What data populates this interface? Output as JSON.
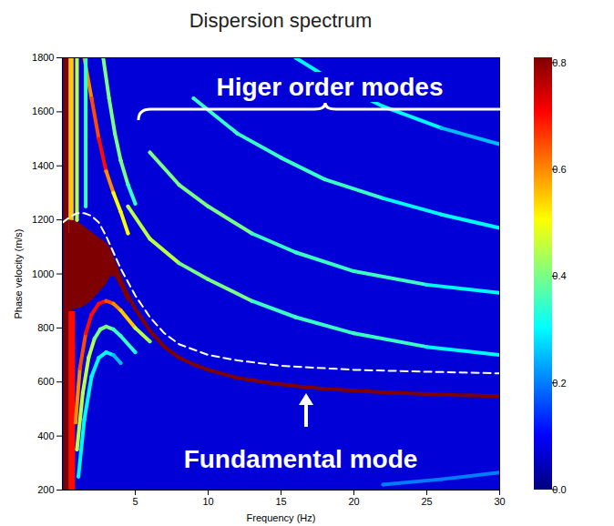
{
  "chart_data": {
    "type": "heatmap",
    "title": "Dispersion spectrum",
    "x_label": "Frequency (Hz)",
    "y_label": "Phase velocity (m/s)",
    "xlim": [
      0,
      30
    ],
    "xticks": [
      5,
      10,
      15,
      20,
      25,
      30
    ],
    "ylim": [
      200,
      1800
    ],
    "yticks": [
      200,
      400,
      600,
      800,
      1000,
      1200,
      1400,
      1600,
      1800
    ],
    "colorbar": {
      "range": [
        0,
        0.81
      ],
      "ticks": [
        {
          "value": 0,
          "label": "0.0"
        },
        0.2,
        0.4,
        0.6,
        0.8
      ]
    },
    "background": 0.07,
    "bands": [
      {
        "x": [
          0.1,
          0.45
        ],
        "y1": [
          200,
          200
        ],
        "y2": [
          1800,
          1800
        ],
        "value": 0.85
      },
      {
        "x": [
          0.45,
          0.8
        ],
        "y1": [
          1150,
          1150
        ],
        "y2": [
          1800,
          1800
        ],
        "value": 0.55
      },
      {
        "x": [
          0.45,
          0.9
        ],
        "y1": [
          200,
          200
        ],
        "y2": [
          860,
          860
        ],
        "value": 0.7
      },
      {
        "x": [
          0.45,
          1,
          1.5,
          2,
          2.5,
          3,
          3.3,
          3.6,
          4,
          4.5
        ],
        "y1": [
          860,
          870,
          880,
          900,
          930,
          960,
          990,
          990,
          950,
          890
        ],
        "y2": [
          1200,
          1195,
          1175,
          1155,
          1135,
          1115,
          1095,
          1055,
          1000,
          935
        ],
        "value": 0.85
      }
    ],
    "ridges": [
      {
        "x": [
          3.5,
          4,
          4.5,
          5,
          6,
          7,
          8,
          9,
          10,
          12,
          14,
          16,
          18,
          20,
          22,
          25,
          28,
          30
        ],
        "y": [
          1010,
          970,
          920,
          870,
          790,
          730,
          690,
          665,
          645,
          615,
          598,
          585,
          575,
          568,
          562,
          555,
          550,
          548
        ],
        "values": [
          0.85,
          0.85,
          0.85,
          0.85,
          0.85,
          0.85,
          0.85,
          0.85,
          0.85,
          0.85,
          0.85,
          0.85,
          0.85,
          0.85,
          0.85,
          0.85,
          0.85,
          0.85
        ]
      },
      {
        "x": [
          0.9,
          1.2,
          1.6,
          2,
          2.5,
          3,
          3.5,
          4,
          5,
          6
        ],
        "y": [
          450,
          650,
          780,
          850,
          890,
          900,
          890,
          865,
          800,
          750
        ],
        "values": [
          0.6,
          0.65,
          0.7,
          0.7,
          0.7,
          0.65,
          0.6,
          0.55,
          0.45,
          0.4
        ]
      },
      {
        "x": [
          1,
          1.4,
          1.8,
          2.2,
          2.6,
          3,
          3.5,
          4,
          5
        ],
        "y": [
          350,
          560,
          690,
          760,
          795,
          805,
          795,
          770,
          710
        ],
        "values": [
          0.45,
          0.45,
          0.45,
          0.4,
          0.4,
          0.4,
          0.35,
          0.35,
          0.3
        ]
      },
      {
        "x": [
          1.1,
          1.5,
          2,
          2.5,
          3,
          3.5,
          4
        ],
        "y": [
          250,
          460,
          620,
          690,
          710,
          700,
          670
        ],
        "values": [
          0.3,
          0.3,
          0.3,
          0.3,
          0.3,
          0.25,
          0.25
        ]
      },
      {
        "x": [
          1.5,
          2,
          2.5,
          3,
          3.5,
          4,
          4.5
        ],
        "y": [
          1800,
          1650,
          1500,
          1380,
          1300,
          1230,
          1150
        ],
        "values": [
          0.6,
          0.65,
          0.7,
          0.6,
          0.5,
          0.5,
          0.5
        ]
      },
      {
        "x": [
          2.8,
          3.2,
          3.6,
          4,
          4.5,
          5
        ],
        "y": [
          1800,
          1650,
          1520,
          1420,
          1330,
          1260
        ],
        "values": [
          0.4,
          0.4,
          0.4,
          0.4,
          0.35,
          0.35
        ]
      },
      {
        "x": [
          1,
          1
        ],
        "y": [
          1200,
          1800
        ],
        "values": [
          0.45,
          0.45
        ]
      },
      {
        "x": [
          1.6,
          1.6
        ],
        "y": [
          1250,
          1800
        ],
        "values": [
          0.35,
          0.35
        ]
      },
      {
        "x": [
          4.5,
          6,
          8,
          10,
          13,
          16,
          20,
          25,
          30
        ],
        "y": [
          1250,
          1130,
          1040,
          980,
          900,
          840,
          780,
          730,
          700
        ],
        "values": [
          0.45,
          0.45,
          0.4,
          0.4,
          0.35,
          0.35,
          0.35,
          0.3,
          0.3
        ]
      },
      {
        "x": [
          6,
          8,
          10,
          13,
          16,
          20,
          25,
          30
        ],
        "y": [
          1450,
          1330,
          1250,
          1150,
          1080,
          1010,
          960,
          930
        ],
        "values": [
          0.4,
          0.4,
          0.4,
          0.35,
          0.35,
          0.35,
          0.3,
          0.3
        ]
      },
      {
        "x": [
          9,
          12,
          15,
          18,
          22,
          26,
          30
        ],
        "y": [
          1650,
          1520,
          1430,
          1350,
          1280,
          1220,
          1170
        ],
        "values": [
          0.35,
          0.35,
          0.35,
          0.35,
          0.3,
          0.3,
          0.3
        ]
      },
      {
        "x": [
          16,
          19,
          22,
          26,
          30
        ],
        "y": [
          1800,
          1700,
          1620,
          1540,
          1480
        ],
        "values": [
          0.3,
          0.3,
          0.3,
          0.25,
          0.25
        ]
      },
      {
        "x": [
          22,
          26,
          30
        ],
        "y": [
          220,
          240,
          265
        ],
        "values": [
          0.2,
          0.2,
          0.2
        ]
      }
    ],
    "reference_line": {
      "x": [
        0,
        0.5,
        1,
        1.5,
        2,
        2.5,
        3,
        3.5,
        4,
        5,
        6,
        7,
        8,
        10,
        12,
        15,
        20,
        25,
        30
      ],
      "y": [
        1190,
        1210,
        1225,
        1225,
        1215,
        1190,
        1140,
        1080,
        1020,
        920,
        840,
        780,
        740,
        700,
        680,
        660,
        645,
        638,
        632
      ],
      "color": "#ffffff",
      "line_style": "dashed"
    },
    "annotations": [
      "Higer order modes",
      "Fundamental mode"
    ]
  }
}
